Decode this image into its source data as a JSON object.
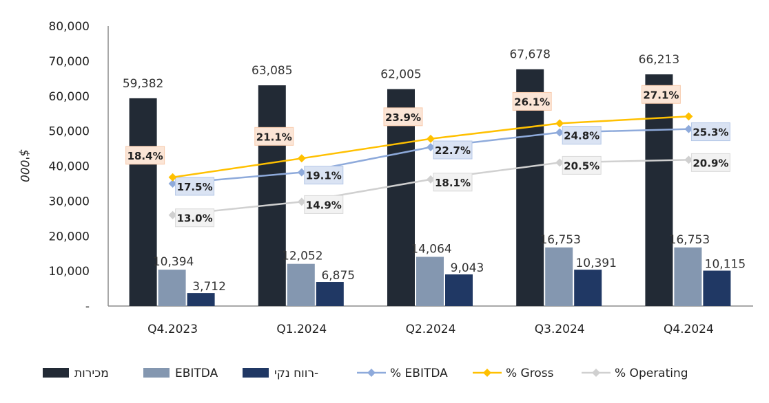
{
  "chart_data": {
    "type": "bar",
    "ylabel": "$'000",
    "ylim": [
      0,
      80000
    ],
    "y_ticks": [
      "80,000",
      "70,000",
      "60,000",
      "50,000",
      "40,000",
      "30,000",
      "20,000",
      "10,000",
      "-"
    ],
    "y_tick_values": [
      80000,
      70000,
      60000,
      50000,
      40000,
      30000,
      20000,
      10000,
      0
    ],
    "categories": [
      "Q4.2023",
      "Q1.2024",
      "Q2.2024",
      "Q3.2024",
      "Q4.2024"
    ],
    "series": [
      {
        "name": "מכירות",
        "kind": "bar",
        "color": "#222a35",
        "values": [
          59382,
          63085,
          62005,
          67678,
          66213
        ],
        "labels": [
          "59,382",
          "63,085",
          "62,005",
          "67,678",
          "66,213"
        ]
      },
      {
        "name": "EBITDA",
        "kind": "bar",
        "color": "#8497b0",
        "values": [
          10394,
          12052,
          14064,
          16753,
          16753
        ],
        "labels": [
          "10,394",
          "12,052",
          "14,064",
          "16,753",
          "16,753"
        ]
      },
      {
        "name": "רווח נקי-",
        "kind": "bar",
        "color": "#203864",
        "values": [
          3712,
          6875,
          9043,
          10391,
          10115
        ],
        "labels": [
          "3,712",
          "6,875",
          "9,043",
          "10,391",
          "10,115"
        ]
      },
      {
        "name": "% EBITDA",
        "kind": "line",
        "color": "#8eaadb",
        "label_bg": "#dae3f3",
        "label_border": "#b4c7e7",
        "values": [
          17.5,
          19.1,
          22.7,
          24.8,
          25.3
        ],
        "labels": [
          "17.5%",
          "19.1%",
          "22.7%",
          "24.8%",
          "25.3%"
        ]
      },
      {
        "name": "% Gross",
        "kind": "line",
        "color": "#ffc000",
        "label_bg": "#fbe5d6",
        "label_border": "#f8cbad",
        "values": [
          18.4,
          21.1,
          23.9,
          26.1,
          27.1
        ],
        "labels": [
          "18.4%",
          "21.1%",
          "23.9%",
          "26.1%",
          "27.1%"
        ]
      },
      {
        "name": "% Operating",
        "kind": "line",
        "color": "#d0d0d0",
        "label_bg": "#f2f2f2",
        "label_border": "#d9d9d9",
        "values": [
          13.0,
          14.9,
          18.1,
          20.5,
          20.9
        ],
        "labels": [
          "13.0%",
          "14.9%",
          "18.1%",
          "20.5%",
          "20.9%"
        ]
      }
    ],
    "legend_position": "bottom",
    "grid": false
  }
}
